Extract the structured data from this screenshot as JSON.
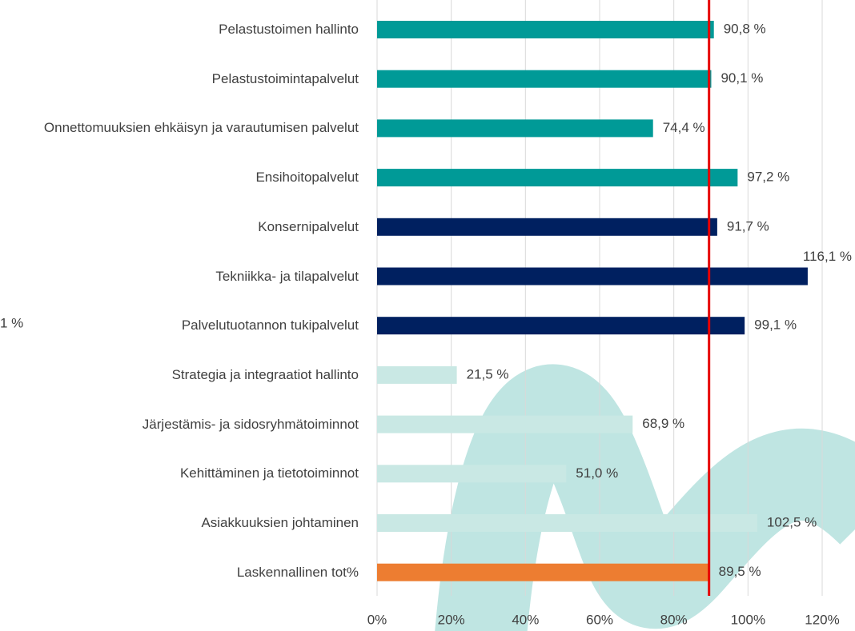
{
  "chart_data": {
    "type": "bar",
    "orientation": "horizontal",
    "categories": [
      "Pelastustoimen hallinto",
      "Pelastustoimintapalvelut",
      "Onnettomuuksien ehkäisyn ja varautumisen palvelut",
      "Ensihoitopalvelut",
      "Konsernipalvelut",
      "Tekniikka- ja tilapalvelut",
      "Palvelutuotannon tukipalvelut",
      "Strategia ja integraatiot hallinto",
      "Järjestämis- ja sidosryhmätoiminnot",
      "Kehittäminen ja tietotoiminnot",
      "Asiakkuuksien johtaminen",
      "Laskennallinen tot%"
    ],
    "values": [
      90.8,
      90.1,
      74.4,
      97.2,
      91.7,
      116.1,
      99.1,
      21.5,
      68.9,
      51.0,
      102.5,
      89.5
    ],
    "value_labels": [
      "90,8 %",
      "90,1 %",
      "74,4 %",
      "97,2 %",
      "91,7 %",
      "116,1 %",
      "99,1 %",
      "21,5 %",
      "68,9 %",
      "51,0 %",
      "102,5 %",
      "89,5 %"
    ],
    "colors": [
      "#009a97",
      "#009a97",
      "#009a97",
      "#009a97",
      "#002060",
      "#002060",
      "#002060",
      "#c9e8e4",
      "#c9e8e4",
      "#c9e8e4",
      "#c9e8e4",
      "#ed7d31"
    ],
    "xlim": [
      0,
      120
    ],
    "xticks": [
      {
        "value": 0,
        "label": "0%"
      },
      {
        "value": 20,
        "label": "20%"
      },
      {
        "value": 40,
        "label": "40%"
      },
      {
        "value": 60,
        "label": "60%"
      },
      {
        "value": 80,
        "label": "80%"
      },
      {
        "value": 100,
        "label": "100%"
      },
      {
        "value": 120,
        "label": "120%"
      }
    ],
    "grid": true,
    "reference_line": {
      "value": 89.5,
      "color": "#e60000"
    },
    "annotation": "1 %"
  }
}
